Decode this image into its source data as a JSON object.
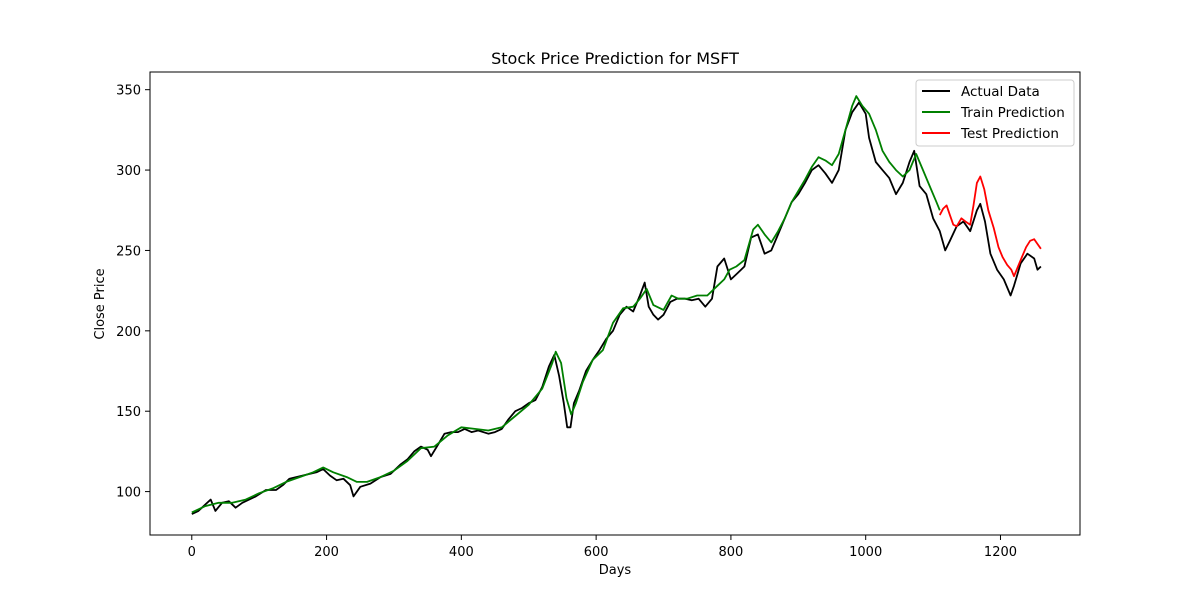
{
  "chart_data": {
    "type": "line",
    "title": "Stock Price Prediction for MSFT",
    "xlabel": "Days",
    "ylabel": "Close Price",
    "xlim": [
      -62,
      1318
    ],
    "ylim": [
      73,
      361
    ],
    "xticks": [
      0,
      200,
      400,
      600,
      800,
      1000,
      1200
    ],
    "yticks": [
      100,
      150,
      200,
      250,
      300,
      350
    ],
    "grid": false,
    "legend_position": "top-right",
    "series": [
      {
        "name": "Actual Data",
        "color": "#000000",
        "points": [
          [
            0,
            86
          ],
          [
            10,
            88
          ],
          [
            20,
            92
          ],
          [
            28,
            95
          ],
          [
            35,
            88
          ],
          [
            45,
            93
          ],
          [
            55,
            94
          ],
          [
            65,
            90
          ],
          [
            75,
            93
          ],
          [
            85,
            95
          ],
          [
            95,
            97
          ],
          [
            110,
            101
          ],
          [
            125,
            101
          ],
          [
            135,
            104
          ],
          [
            145,
            108
          ],
          [
            155,
            109
          ],
          [
            165,
            110
          ],
          [
            175,
            111
          ],
          [
            185,
            112
          ],
          [
            195,
            114
          ],
          [
            205,
            110
          ],
          [
            215,
            107
          ],
          [
            225,
            108
          ],
          [
            235,
            104
          ],
          [
            240,
            97
          ],
          [
            250,
            103
          ],
          [
            265,
            105
          ],
          [
            280,
            109
          ],
          [
            295,
            111
          ],
          [
            310,
            117
          ],
          [
            320,
            120
          ],
          [
            330,
            125
          ],
          [
            340,
            128
          ],
          [
            350,
            126
          ],
          [
            355,
            122
          ],
          [
            365,
            129
          ],
          [
            375,
            136
          ],
          [
            385,
            137
          ],
          [
            395,
            137
          ],
          [
            405,
            139
          ],
          [
            415,
            137
          ],
          [
            425,
            138
          ],
          [
            440,
            136
          ],
          [
            450,
            137
          ],
          [
            460,
            139
          ],
          [
            470,
            145
          ],
          [
            480,
            150
          ],
          [
            490,
            152
          ],
          [
            500,
            155
          ],
          [
            510,
            157
          ],
          [
            520,
            165
          ],
          [
            530,
            178
          ],
          [
            538,
            185
          ],
          [
            545,
            172
          ],
          [
            552,
            155
          ],
          [
            557,
            140
          ],
          [
            562,
            140
          ],
          [
            567,
            155
          ],
          [
            575,
            163
          ],
          [
            585,
            175
          ],
          [
            595,
            182
          ],
          [
            605,
            188
          ],
          [
            615,
            195
          ],
          [
            625,
            200
          ],
          [
            635,
            210
          ],
          [
            645,
            215
          ],
          [
            655,
            212
          ],
          [
            665,
            222
          ],
          [
            672,
            230
          ],
          [
            678,
            215
          ],
          [
            685,
            210
          ],
          [
            692,
            207
          ],
          [
            700,
            210
          ],
          [
            710,
            218
          ],
          [
            720,
            220
          ],
          [
            732,
            220
          ],
          [
            742,
            219
          ],
          [
            752,
            220
          ],
          [
            762,
            215
          ],
          [
            772,
            220
          ],
          [
            780,
            240
          ],
          [
            790,
            245
          ],
          [
            800,
            232
          ],
          [
            810,
            236
          ],
          [
            820,
            240
          ],
          [
            830,
            258
          ],
          [
            840,
            260
          ],
          [
            850,
            248
          ],
          [
            860,
            250
          ],
          [
            870,
            260
          ],
          [
            880,
            270
          ],
          [
            890,
            280
          ],
          [
            900,
            285
          ],
          [
            910,
            292
          ],
          [
            920,
            300
          ],
          [
            930,
            303
          ],
          [
            940,
            298
          ],
          [
            950,
            292
          ],
          [
            960,
            300
          ],
          [
            970,
            325
          ],
          [
            980,
            336
          ],
          [
            990,
            342
          ],
          [
            1000,
            335
          ],
          [
            1005,
            320
          ],
          [
            1015,
            305
          ],
          [
            1025,
            300
          ],
          [
            1035,
            295
          ],
          [
            1045,
            285
          ],
          [
            1055,
            292
          ],
          [
            1065,
            305
          ],
          [
            1072,
            312
          ],
          [
            1080,
            290
          ],
          [
            1090,
            285
          ],
          [
            1100,
            270
          ],
          [
            1110,
            262
          ],
          [
            1118,
            250
          ],
          [
            1125,
            256
          ],
          [
            1135,
            265
          ],
          [
            1145,
            268
          ],
          [
            1155,
            262
          ],
          [
            1165,
            275
          ],
          [
            1170,
            279
          ],
          [
            1177,
            268
          ],
          [
            1185,
            248
          ],
          [
            1195,
            238
          ],
          [
            1205,
            232
          ],
          [
            1215,
            222
          ],
          [
            1220,
            228
          ],
          [
            1230,
            242
          ],
          [
            1240,
            248
          ],
          [
            1250,
            245
          ],
          [
            1255,
            238
          ],
          [
            1260,
            240
          ]
        ]
      },
      {
        "name": "Train Prediction",
        "color": "#008000",
        "points": [
          [
            0,
            87
          ],
          [
            20,
            91
          ],
          [
            40,
            93
          ],
          [
            60,
            93
          ],
          [
            80,
            95
          ],
          [
            100,
            99
          ],
          [
            120,
            102
          ],
          [
            140,
            106
          ],
          [
            160,
            109
          ],
          [
            180,
            112
          ],
          [
            195,
            115
          ],
          [
            210,
            112
          ],
          [
            230,
            109
          ],
          [
            245,
            106
          ],
          [
            260,
            106
          ],
          [
            280,
            109
          ],
          [
            300,
            113
          ],
          [
            320,
            119
          ],
          [
            340,
            127
          ],
          [
            360,
            128
          ],
          [
            380,
            135
          ],
          [
            400,
            140
          ],
          [
            420,
            139
          ],
          [
            440,
            138
          ],
          [
            460,
            140
          ],
          [
            480,
            147
          ],
          [
            500,
            154
          ],
          [
            520,
            164
          ],
          [
            535,
            180
          ],
          [
            540,
            187
          ],
          [
            548,
            180
          ],
          [
            556,
            158
          ],
          [
            563,
            148
          ],
          [
            570,
            155
          ],
          [
            580,
            168
          ],
          [
            595,
            182
          ],
          [
            610,
            188
          ],
          [
            625,
            205
          ],
          [
            640,
            214
          ],
          [
            655,
            215
          ],
          [
            665,
            220
          ],
          [
            675,
            226
          ],
          [
            685,
            216
          ],
          [
            700,
            213
          ],
          [
            712,
            222
          ],
          [
            722,
            220
          ],
          [
            735,
            220
          ],
          [
            750,
            222
          ],
          [
            765,
            222
          ],
          [
            780,
            228
          ],
          [
            790,
            232
          ],
          [
            798,
            238
          ],
          [
            808,
            240
          ],
          [
            820,
            244
          ],
          [
            833,
            263
          ],
          [
            840,
            266
          ],
          [
            850,
            260
          ],
          [
            860,
            255
          ],
          [
            870,
            262
          ],
          [
            880,
            270
          ],
          [
            890,
            280
          ],
          [
            900,
            287
          ],
          [
            910,
            294
          ],
          [
            920,
            302
          ],
          [
            930,
            308
          ],
          [
            940,
            306
          ],
          [
            950,
            303
          ],
          [
            960,
            310
          ],
          [
            970,
            325
          ],
          [
            980,
            340
          ],
          [
            986,
            346
          ],
          [
            995,
            340
          ],
          [
            1005,
            335
          ],
          [
            1015,
            325
          ],
          [
            1025,
            312
          ],
          [
            1035,
            305
          ],
          [
            1045,
            300
          ],
          [
            1055,
            296
          ],
          [
            1065,
            300
          ],
          [
            1075,
            310
          ],
          [
            1085,
            300
          ],
          [
            1095,
            290
          ],
          [
            1105,
            280
          ],
          [
            1110,
            275
          ]
        ]
      },
      {
        "name": "Test Prediction",
        "color": "#ff0000",
        "points": [
          [
            1110,
            272
          ],
          [
            1115,
            276
          ],
          [
            1120,
            278
          ],
          [
            1125,
            272
          ],
          [
            1130,
            266
          ],
          [
            1135,
            265
          ],
          [
            1142,
            270
          ],
          [
            1148,
            268
          ],
          [
            1155,
            266
          ],
          [
            1160,
            278
          ],
          [
            1165,
            292
          ],
          [
            1170,
            296
          ],
          [
            1176,
            288
          ],
          [
            1182,
            275
          ],
          [
            1190,
            264
          ],
          [
            1197,
            252
          ],
          [
            1203,
            246
          ],
          [
            1210,
            241
          ],
          [
            1216,
            238
          ],
          [
            1220,
            234
          ],
          [
            1226,
            240
          ],
          [
            1232,
            246
          ],
          [
            1238,
            252
          ],
          [
            1244,
            256
          ],
          [
            1250,
            257
          ],
          [
            1255,
            254
          ],
          [
            1260,
            251
          ]
        ]
      }
    ]
  }
}
